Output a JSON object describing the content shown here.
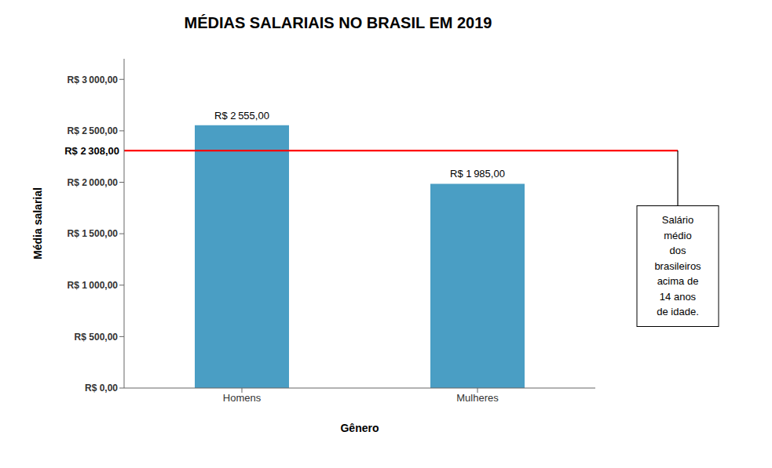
{
  "chart_data": {
    "type": "bar",
    "title": "MÉDIAS SALARIAIS NO BRASIL EM 2019",
    "categories": [
      "Homens",
      "Mulheres"
    ],
    "values": [
      2555,
      1985
    ],
    "value_labels": [
      "R$ 2 555,00",
      "R$ 1 985,00"
    ],
    "data_labels": true,
    "color": "#4A9EC4",
    "xlabel": "Gênero",
    "ylabel": "Média salarial",
    "ylim": [
      0,
      3200
    ],
    "yticks": [
      {
        "value": 0,
        "label": "R$ 0,00"
      },
      {
        "value": 500,
        "label": "R$ 500,00"
      },
      {
        "value": 1000,
        "label": "R$ 1 000,00"
      },
      {
        "value": 1500,
        "label": "R$ 1 500,00"
      },
      {
        "value": 2000,
        "label": "R$ 2 000,00"
      },
      {
        "value": 2500,
        "label": "R$ 2 500,00"
      },
      {
        "value": 3000,
        "label": "R$ 3 000,00"
      }
    ],
    "grid": false,
    "reference_line": {
      "value": 2308,
      "label": "R$ 2 308,00",
      "color": "#FF0000"
    },
    "annotation": "Salário médio\ndos brasileiros\nacima de\n14 anos\nde idade."
  }
}
